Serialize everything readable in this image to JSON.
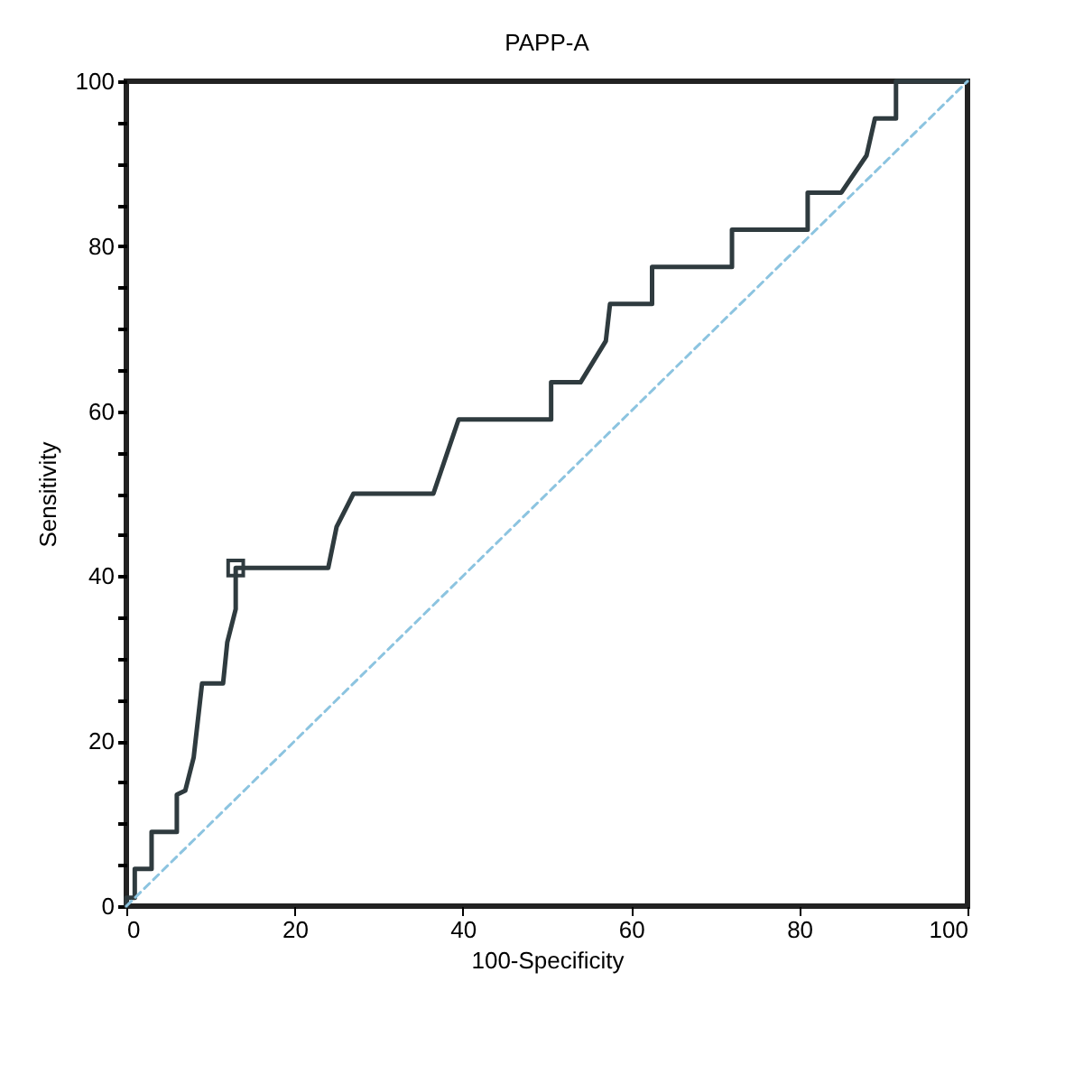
{
  "chart_data": {
    "type": "line",
    "title": "PAPP-A",
    "xlabel": "100-Specificity",
    "ylabel": "Sensitivity",
    "xlim": [
      0,
      100
    ],
    "ylim": [
      0,
      100
    ],
    "xticks": [
      0,
      20,
      40,
      60,
      80,
      100
    ],
    "yticks": [
      0,
      {
        "value": 5,
        "label": null
      },
      {
        "value": 10,
        "label": null
      },
      {
        "value": 15,
        "label": null
      },
      20,
      {
        "value": 25,
        "label": null
      },
      {
        "value": 30,
        "label": null
      },
      {
        "value": 35,
        "label": null
      },
      40,
      {
        "value": 45,
        "label": null
      },
      {
        "value": 50,
        "label": null
      },
      {
        "value": 55,
        "label": null
      },
      60,
      {
        "value": 65,
        "label": null
      },
      {
        "value": 70,
        "label": null
      },
      {
        "value": 75,
        "label": null
      },
      80,
      {
        "value": 85,
        "label": null
      },
      {
        "value": 90,
        "label": null
      },
      {
        "value": 95,
        "label": null
      },
      100
    ],
    "series": [
      {
        "type": "line",
        "color": "#2f3b3f",
        "line_style": "solid",
        "marker": "none",
        "x": [
          0,
          0,
          1,
          1,
          3,
          3,
          6,
          6,
          7,
          8,
          9,
          11.5,
          12,
          13,
          13,
          24,
          25,
          27,
          36.5,
          38,
          39.5,
          50.5,
          50.5,
          54,
          57,
          57.5,
          62.5,
          62.5,
          72,
          72,
          81,
          81,
          85,
          88,
          89,
          91.5,
          91.5,
          100
        ],
        "values": [
          0,
          1,
          1,
          4.5,
          4.5,
          9,
          9,
          13.5,
          14,
          18,
          27,
          27,
          32,
          36,
          41,
          41,
          46,
          50,
          50,
          54.5,
          59,
          59,
          63.5,
          63.5,
          68.5,
          73,
          73,
          77.5,
          77.5,
          82,
          82,
          86.5,
          86.5,
          91,
          95.5,
          95.5,
          100,
          100
        ]
      },
      {
        "type": "line",
        "color": "#8cc4e0",
        "line_style": "dashed",
        "marker": "none",
        "x": [
          0,
          100
        ],
        "values": [
          0,
          100
        ]
      },
      {
        "type": "scatter",
        "color": "#2f3b3f",
        "marker": "square",
        "x": [
          13
        ],
        "values": [
          41
        ]
      }
    ]
  }
}
